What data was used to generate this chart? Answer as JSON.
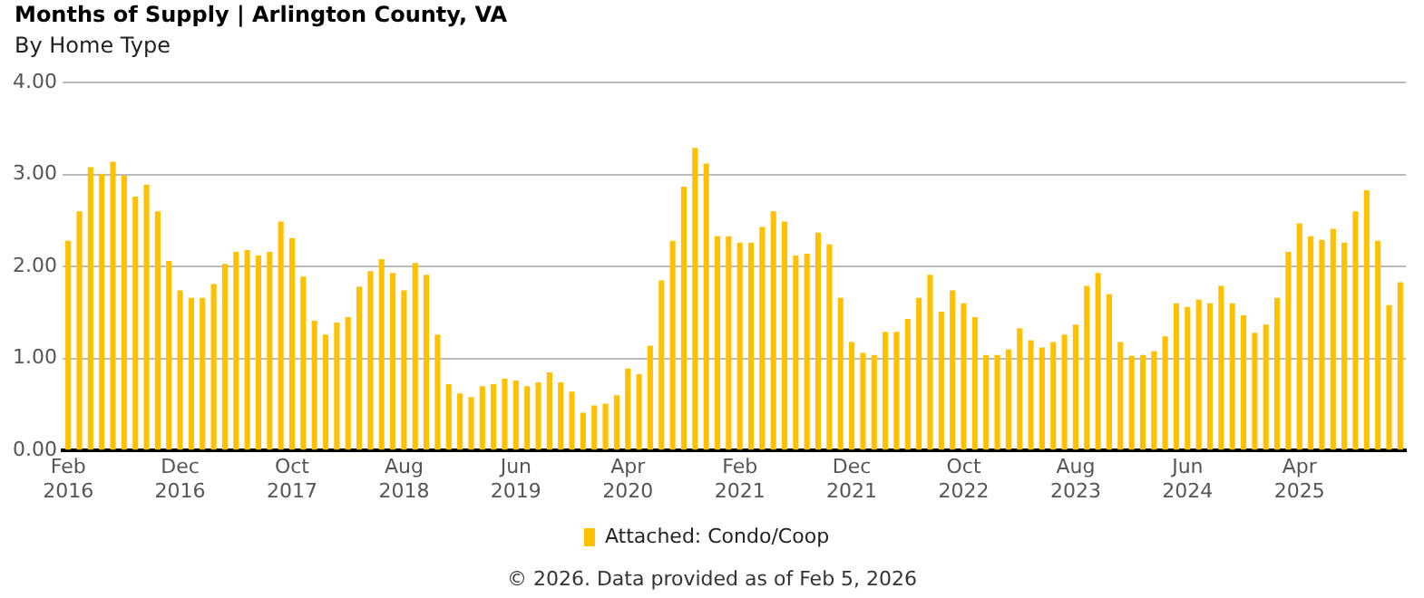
{
  "chart_data": {
    "type": "bar",
    "title": "Months of Supply | Arlington County, VA",
    "subtitle": "By Home Type",
    "categories": [
      "Feb 2016",
      null,
      null,
      null,
      null,
      null,
      null,
      null,
      null,
      null,
      "Dec 2016",
      null,
      null,
      null,
      null,
      null,
      null,
      null,
      null,
      null,
      "Oct 2017",
      null,
      null,
      null,
      null,
      null,
      null,
      null,
      null,
      null,
      "Aug 2018",
      null,
      null,
      null,
      null,
      null,
      null,
      null,
      null,
      null,
      "Jun 2019",
      null,
      null,
      null,
      null,
      null,
      null,
      null,
      null,
      null,
      "Apr 2020",
      null,
      null,
      null,
      null,
      null,
      null,
      null,
      null,
      null,
      "Feb 2021",
      null,
      null,
      null,
      null,
      null,
      null,
      null,
      null,
      null,
      "Dec 2021",
      null,
      null,
      null,
      null,
      null,
      null,
      null,
      null,
      null,
      "Oct 2022",
      null,
      null,
      null,
      null,
      null,
      null,
      null,
      null,
      null,
      "Aug 2023",
      null,
      null,
      null,
      null,
      null,
      null,
      null,
      null,
      null,
      "Jun 2024",
      null,
      null,
      null,
      null,
      null,
      null,
      null,
      null,
      null,
      "Apr 2025",
      null,
      null,
      null,
      null,
      null,
      null,
      null,
      null,
      null
    ],
    "series": [
      {
        "name": "Attached: Condo/Coop",
        "color": "#ffc000",
        "values": [
          2.28,
          2.6,
          3.08,
          3.01,
          3.14,
          2.99,
          2.76,
          2.89,
          2.6,
          2.06,
          1.74,
          1.66,
          1.66,
          1.81,
          2.03,
          2.16,
          2.18,
          2.12,
          2.16,
          2.49,
          2.31,
          1.89,
          1.41,
          1.26,
          1.39,
          1.45,
          1.78,
          1.95,
          2.08,
          1.93,
          1.74,
          2.04,
          1.91,
          1.26,
          0.72,
          0.62,
          0.58,
          0.7,
          0.72,
          0.78,
          0.76,
          0.7,
          0.74,
          0.85,
          0.74,
          0.64,
          0.41,
          0.49,
          0.51,
          0.6,
          0.89,
          0.83,
          1.14,
          1.85,
          2.28,
          2.87,
          3.29,
          3.12,
          2.33,
          2.33,
          2.26,
          2.26,
          2.43,
          2.6,
          2.49,
          2.12,
          2.14,
          2.37,
          2.24,
          1.66,
          1.18,
          1.06,
          1.04,
          1.29,
          1.29,
          1.43,
          1.66,
          1.91,
          1.51,
          1.74,
          1.6,
          1.45,
          1.04,
          1.04,
          1.1,
          1.33,
          1.2,
          1.12,
          1.18,
          1.26,
          1.37,
          1.79,
          1.93,
          1.7,
          1.18,
          1.03,
          1.04,
          1.08,
          1.24,
          1.6,
          1.56,
          1.64,
          1.6,
          1.79,
          1.6,
          1.47,
          1.28,
          1.37,
          1.66,
          2.16,
          2.47,
          2.33,
          2.29,
          2.41,
          2.26,
          2.6,
          2.83,
          2.28,
          1.58,
          1.83
        ]
      }
    ],
    "ylim": [
      0,
      4
    ],
    "yticks": [
      {
        "value": 0,
        "label": "0.00"
      },
      {
        "value": 1,
        "label": "1.00"
      },
      {
        "value": 2,
        "label": "2.00"
      },
      {
        "value": 3,
        "label": "3.00"
      },
      {
        "value": 4,
        "label": "4.00"
      }
    ],
    "grid": "y",
    "legend": "bottom",
    "annotations": [
      "© 2026. Data provided as of Feb 5, 2026"
    ]
  }
}
